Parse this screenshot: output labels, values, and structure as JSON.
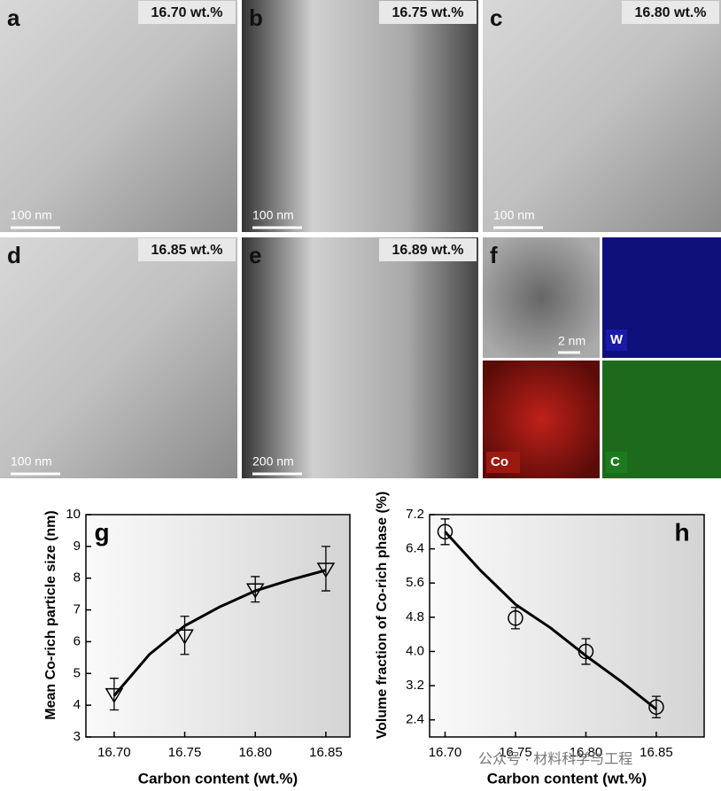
{
  "panels": [
    {
      "letter": "a",
      "carbon": "16.70 wt.%",
      "scale": "100 nm"
    },
    {
      "letter": "b",
      "carbon": "16.75 wt.%",
      "scale": "100 nm"
    },
    {
      "letter": "c",
      "carbon": "16.80 wt.%",
      "scale": "100 nm"
    },
    {
      "letter": "d",
      "carbon": "16.85 wt.%",
      "scale": "100 nm"
    },
    {
      "letter": "e",
      "carbon": "16.89 wt.%",
      "scale": "200 nm"
    }
  ],
  "panel_f": {
    "letter": "f",
    "scale": "2 nm",
    "maps": [
      "W",
      "Co",
      "C"
    ]
  },
  "watermark": "公众号 · 材料科学与工程",
  "chart_data": [
    {
      "type": "scatter",
      "panel": "g",
      "xlabel": "Carbon content (wt.%)",
      "ylabel": "Mean Co-rich  particle size (nm)",
      "marker": "triangle-down",
      "x": [
        16.7,
        16.75,
        16.8,
        16.85
      ],
      "values": [
        4.35,
        6.2,
        7.65,
        8.3
      ],
      "errors": [
        0.5,
        0.6,
        0.4,
        0.7
      ],
      "fit": {
        "x": [
          16.7,
          16.725,
          16.75,
          16.775,
          16.8,
          16.825,
          16.85
        ],
        "values": [
          4.3,
          5.6,
          6.5,
          7.1,
          7.6,
          7.95,
          8.25
        ]
      },
      "xlim": [
        16.68,
        16.867
      ],
      "ylim": [
        3,
        10
      ],
      "xticks": [
        {
          "value": 16.7,
          "label": "16.70"
        },
        {
          "value": 16.75,
          "label": "16.75"
        },
        {
          "value": 16.8,
          "label": "16.80"
        },
        {
          "value": 16.85,
          "label": "16.85"
        }
      ],
      "yticks": [
        3,
        4,
        5,
        6,
        7,
        8,
        9,
        10
      ]
    },
    {
      "type": "scatter",
      "panel": "h",
      "xlabel": "Carbon content (wt.%)",
      "ylabel": "Volume fraction of Co-rich phase (%)",
      "marker": "circle",
      "x": [
        16.7,
        16.75,
        16.8,
        16.85
      ],
      "values": [
        6.8,
        4.78,
        4.0,
        2.7
      ],
      "errors": [
        0.3,
        0.25,
        0.3,
        0.25
      ],
      "fit": {
        "x": [
          16.7,
          16.725,
          16.75,
          16.775,
          16.8,
          16.825,
          16.85
        ],
        "values": [
          6.8,
          5.9,
          5.1,
          4.55,
          3.9,
          3.3,
          2.65
        ]
      },
      "xlim": [
        16.689,
        16.884
      ],
      "ylim": [
        2.0,
        7.2
      ],
      "xticks": [
        {
          "value": 16.7,
          "label": "16.70"
        },
        {
          "value": 16.75,
          "label": "16.75"
        },
        {
          "value": 16.8,
          "label": "16.80"
        },
        {
          "value": 16.85,
          "label": "16.85"
        }
      ],
      "yticks": [
        2.4,
        3.2,
        {
          "value": 4.0,
          "label": "4.0"
        },
        4.8,
        5.6,
        6.4,
        7.2
      ]
    }
  ]
}
